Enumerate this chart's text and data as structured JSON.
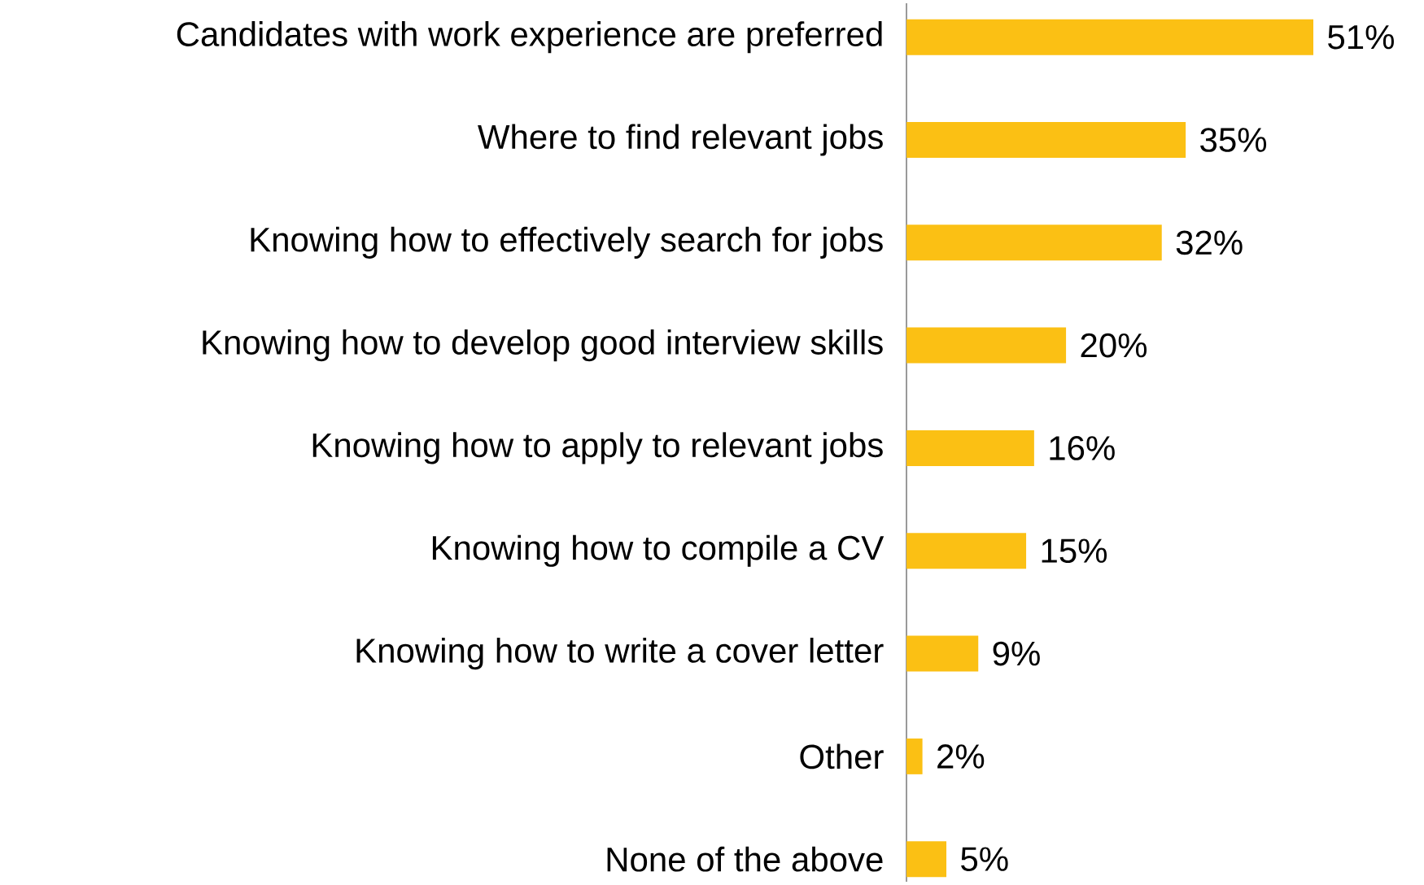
{
  "chart_data": {
    "type": "bar",
    "orientation": "horizontal",
    "categories": [
      "Candidates with work experience are preferred",
      "Where to find relevant jobs",
      "Knowing how to effectively search for jobs",
      "Knowing how to develop good interview skills",
      "Knowing how to apply to relevant jobs",
      "Knowing how to compile a CV",
      "Knowing how to write a cover letter",
      "Other",
      "None of the above"
    ],
    "values": [
      51,
      35,
      32,
      20,
      16,
      15,
      9,
      2,
      5
    ],
    "value_labels": [
      "51%",
      "35%",
      "32%",
      "20%",
      "16%",
      "15%",
      "9%",
      "2%",
      "5%"
    ],
    "color": "#fbc014"
  }
}
